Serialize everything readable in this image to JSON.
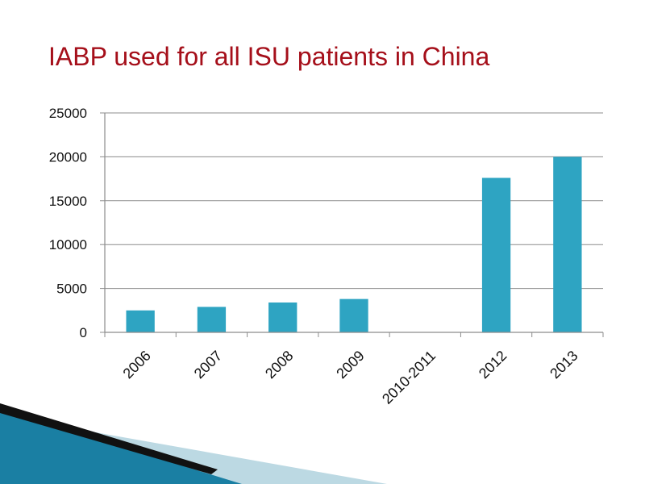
{
  "slide": {
    "title": "IABP used for all ISU patients in China"
  },
  "colors": {
    "title": "#a50f1a",
    "bar": "#2ea4c2",
    "grid": "#8c8c8c",
    "deco_dark": "#111111",
    "deco_blue": "#1a7fa3",
    "deco_light": "#bcd9e3"
  },
  "chart_data": {
    "type": "bar",
    "title": "",
    "xlabel": "",
    "ylabel": "",
    "categories": [
      "2006",
      "2007",
      "2008",
      "2009",
      "2010-2011",
      "2012",
      "2013"
    ],
    "values": [
      2500,
      2900,
      3400,
      3800,
      0,
      17600,
      20000
    ],
    "ylim": [
      0,
      25000
    ],
    "yticks": [
      0,
      5000,
      10000,
      15000,
      20000,
      25000
    ],
    "grid": true,
    "legend": "none"
  }
}
